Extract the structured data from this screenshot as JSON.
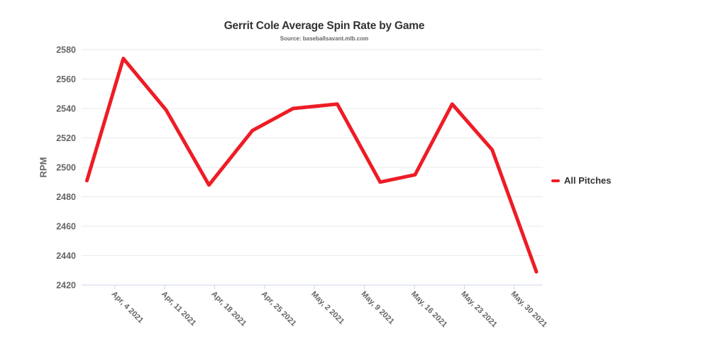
{
  "page": {
    "background": "#ffffff"
  },
  "chart_data": {
    "type": "line",
    "title": "Gerrit Cole Average Spin Rate by Game",
    "subtitle": "Source: baseballsavant.mlb.com",
    "xlabel": "",
    "ylabel": "RPM",
    "ylim": [
      2420,
      2580
    ],
    "yticks": [
      2420,
      2440,
      2460,
      2480,
      2500,
      2520,
      2540,
      2560,
      2580
    ],
    "grid": "horizontal-only",
    "legend_position": "right-middle",
    "x_axis": {
      "type": "date-days-after-Apr-4-2021",
      "domain_days": [
        -4.65,
        60.0
      ],
      "ticks": [
        {
          "day": 0,
          "label": "Apr, 4 2021"
        },
        {
          "day": 7,
          "label": "Apr, 11 2021"
        },
        {
          "day": 14,
          "label": "Apr, 18 2021"
        },
        {
          "day": 21,
          "label": "Apr, 25 2021"
        },
        {
          "day": 28,
          "label": "May, 2 2021"
        },
        {
          "day": 35,
          "label": "May, 9 2021"
        },
        {
          "day": 42,
          "label": "May, 16 2021"
        },
        {
          "day": 49,
          "label": "May, 23 2021"
        },
        {
          "day": 56,
          "label": "May, 30 2021"
        }
      ]
    },
    "series": [
      {
        "name": "All Pitches",
        "color": "#ee1c25",
        "points": [
          {
            "day": -3.9,
            "rpm": 2491
          },
          {
            "day": 1.2,
            "rpm": 2574
          },
          {
            "day": 7.2,
            "rpm": 2539
          },
          {
            "day": 13.2,
            "rpm": 2488
          },
          {
            "day": 19.3,
            "rpm": 2525
          },
          {
            "day": 25.0,
            "rpm": 2540
          },
          {
            "day": 31.2,
            "rpm": 2543
          },
          {
            "day": 37.2,
            "rpm": 2490
          },
          {
            "day": 42.1,
            "rpm": 2495
          },
          {
            "day": 47.3,
            "rpm": 2543
          },
          {
            "day": 52.9,
            "rpm": 2512
          },
          {
            "day": 59.1,
            "rpm": 2429
          }
        ]
      }
    ],
    "colors": {
      "series_red": "#ee1c25",
      "gridline": "#eaeaea",
      "axis_line": "#ccd6eb",
      "tick_label_gray": "#666666",
      "title_dark": "#333333"
    }
  }
}
